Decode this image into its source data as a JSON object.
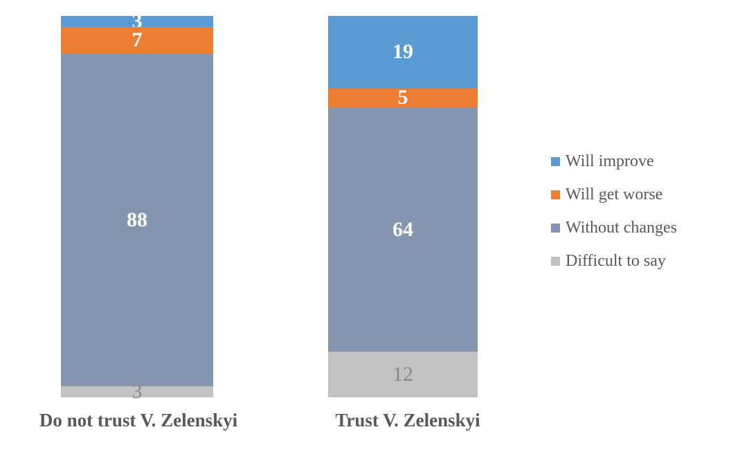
{
  "chart_data": {
    "type": "bar",
    "variant": "stacked-column-100",
    "title": "",
    "xlabel": "",
    "ylabel": "",
    "grid": false,
    "axes_visible": false,
    "legend_position": "right",
    "background": "#FFFFFF",
    "category_label_color": "#595959",
    "legend_text_color": "#595959",
    "categories": [
      "Do not trust V. Zelenskyi",
      "Trust V. Zelenskyi"
    ],
    "series": [
      {
        "name": "Will improve",
        "color": "#5B9BD5",
        "values": [
          3,
          19
        ],
        "label_color": "#FFFFFF",
        "label_weight": "bold"
      },
      {
        "name": "Will get worse",
        "color": "#ED7D31",
        "values": [
          7,
          5
        ],
        "label_color": "#FFFFFF",
        "label_weight": "bold"
      },
      {
        "name": "Without changes",
        "color": "#8496B0",
        "values": [
          88,
          64
        ],
        "label_color": "#FFFFFF",
        "label_weight": "bold"
      },
      {
        "name": "Difficult to say",
        "color": "#C2C2C2",
        "values": [
          3,
          12
        ],
        "label_color": "#898989",
        "label_weight": "normal"
      }
    ]
  }
}
